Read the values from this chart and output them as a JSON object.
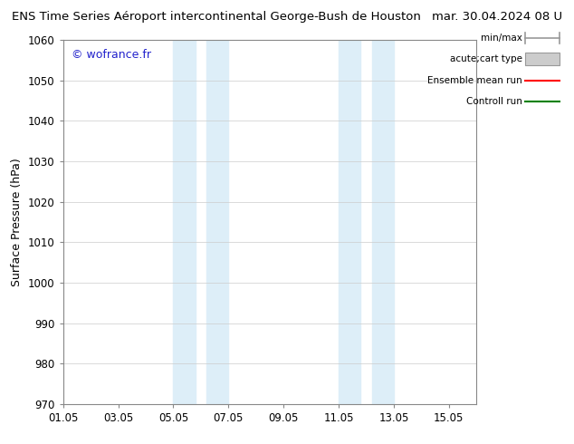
{
  "title_left": "ENS Time Series Aéroport intercontinental George-Bush de Houston",
  "title_right": "mar. 30.04.2024 08 U",
  "ylabel": "Surface Pressure (hPa)",
  "ylim": [
    970,
    1060
  ],
  "yticks": [
    970,
    980,
    990,
    1000,
    1010,
    1020,
    1030,
    1040,
    1050,
    1060
  ],
  "xtick_labels": [
    "01.05",
    "03.05",
    "05.05",
    "07.05",
    "09.05",
    "11.05",
    "13.05",
    "15.05"
  ],
  "xtick_positions": [
    0,
    2,
    4,
    6,
    8,
    10,
    12,
    14
  ],
  "xlim": [
    0,
    15
  ],
  "shaded_regions": [
    {
      "xstart": 4.0,
      "xend": 4.8,
      "color": "#ddeef8"
    },
    {
      "xstart": 5.2,
      "xend": 6.0,
      "color": "#ddeef8"
    },
    {
      "xstart": 10.0,
      "xend": 10.8,
      "color": "#ddeef8"
    },
    {
      "xstart": 11.2,
      "xend": 12.0,
      "color": "#ddeef8"
    }
  ],
  "watermark_text": "© wofrance.fr",
  "watermark_color": "#2222cc",
  "legend_items": [
    {
      "label": "min/max",
      "type": "errorbar",
      "color": "#999999"
    },
    {
      "label": "acute;cart type",
      "type": "box",
      "color": "#cccccc"
    },
    {
      "label": "Ensemble mean run",
      "type": "line",
      "color": "#ff0000"
    },
    {
      "label": "Controll run",
      "type": "line",
      "color": "#008000"
    }
  ],
  "bg_color": "#ffffff",
  "grid_color": "#cccccc",
  "title_fontsize": 9.5,
  "axis_fontsize": 9,
  "tick_fontsize": 8.5
}
